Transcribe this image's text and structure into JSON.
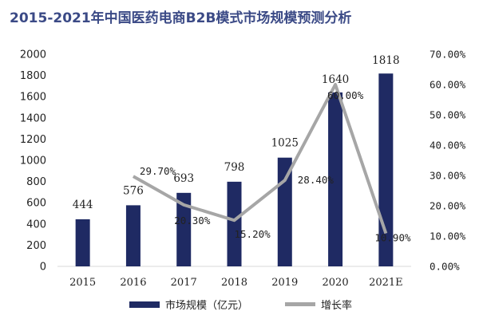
{
  "title": "2015-2021年中国医药电商B2B模式市场规模预测分析",
  "chart_data": {
    "type": "bar",
    "categories": [
      "2015",
      "2016",
      "2017",
      "2018",
      "2019",
      "2020",
      "2021E"
    ],
    "series": [
      {
        "name": "市场规模（亿元）",
        "kind": "bar",
        "axis": "left",
        "color": "#1f2a63",
        "values": [
          444,
          576,
          693,
          798,
          1025,
          1640,
          1818
        ],
        "value_labels": [
          "444",
          "576",
          "693",
          "798",
          "1025",
          "1640",
          "1818"
        ]
      },
      {
        "name": "增长率",
        "kind": "line",
        "axis": "right",
        "color": "#a6a6a6",
        "values": [
          null,
          29.7,
          20.3,
          15.2,
          28.4,
          60.0,
          10.9
        ],
        "value_labels": [
          "",
          "29.70%",
          "20.30%",
          "15.20%",
          "28.40%",
          "60.00%",
          "10.90%"
        ]
      }
    ],
    "y_left": {
      "range": [
        0,
        2000
      ],
      "ticks": [
        "0",
        "200",
        "400",
        "600",
        "800",
        "1000",
        "1200",
        "1400",
        "1600",
        "1800",
        "2000"
      ]
    },
    "y_right": {
      "range": [
        0,
        70
      ],
      "ticks": [
        "0.00%",
        "10.00%",
        "20.00%",
        "30.00%",
        "40.00%",
        "50.00%",
        "60.00%",
        "70.00%"
      ]
    },
    "grid": false,
    "legend_position": "bottom"
  }
}
